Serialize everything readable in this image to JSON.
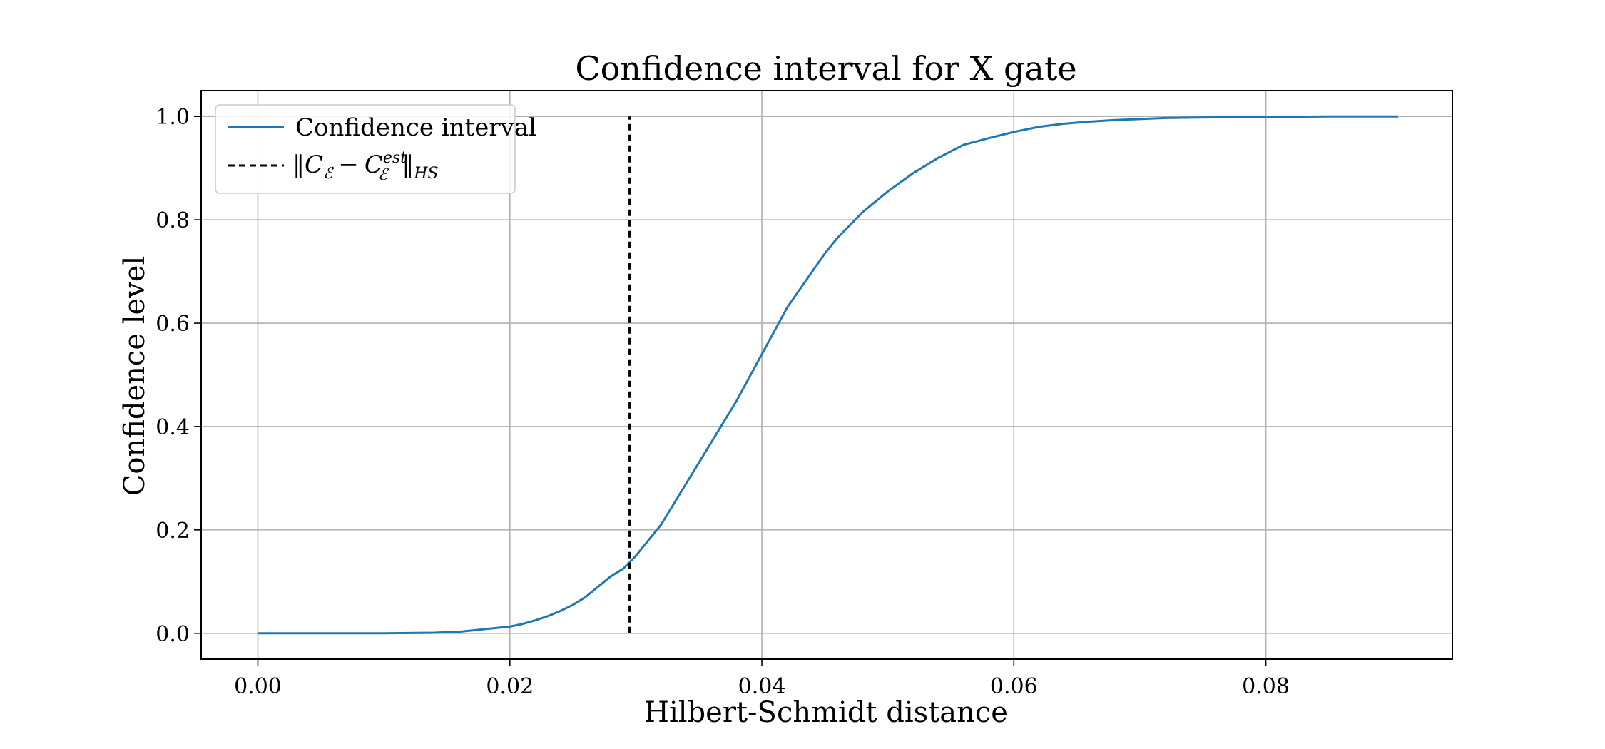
{
  "chart_data": {
    "type": "line",
    "title": "Confidence interval for X gate",
    "xlabel": "Hilbert-Schmidt distance",
    "ylabel": "Confidence level",
    "xlim": [
      -0.0045,
      0.0948
    ],
    "ylim": [
      -0.05,
      1.05
    ],
    "xticks": [
      0.0,
      0.02,
      0.04,
      0.06,
      0.08
    ],
    "xtick_labels": [
      "0.00",
      "0.02",
      "0.04",
      "0.06",
      "0.08"
    ],
    "yticks": [
      0.0,
      0.2,
      0.4,
      0.6,
      0.8,
      1.0
    ],
    "ytick_labels": [
      "0.0",
      "0.2",
      "0.4",
      "0.6",
      "0.8",
      "1.0"
    ],
    "grid": true,
    "legend": "top-left",
    "series": [
      {
        "name": "Confidence interval",
        "color": "#1f77b4",
        "style": "solid",
        "x": [
          0.0,
          0.01,
          0.014,
          0.016,
          0.018,
          0.02,
          0.021,
          0.022,
          0.023,
          0.024,
          0.025,
          0.026,
          0.027,
          0.028,
          0.029,
          0.03,
          0.031,
          0.032,
          0.033,
          0.034,
          0.035,
          0.036,
          0.037,
          0.038,
          0.039,
          0.04,
          0.041,
          0.042,
          0.043,
          0.044,
          0.045,
          0.046,
          0.047,
          0.048,
          0.049,
          0.05,
          0.052,
          0.054,
          0.056,
          0.058,
          0.06,
          0.062,
          0.064,
          0.066,
          0.068,
          0.07,
          0.072,
          0.075,
          0.08,
          0.085,
          0.0905
        ],
        "y": [
          0.0,
          0.0,
          0.001,
          0.003,
          0.008,
          0.013,
          0.018,
          0.025,
          0.033,
          0.043,
          0.055,
          0.07,
          0.09,
          0.11,
          0.125,
          0.15,
          0.18,
          0.21,
          0.25,
          0.29,
          0.33,
          0.37,
          0.41,
          0.45,
          0.495,
          0.54,
          0.585,
          0.63,
          0.665,
          0.7,
          0.735,
          0.765,
          0.79,
          0.815,
          0.835,
          0.855,
          0.89,
          0.92,
          0.945,
          0.958,
          0.97,
          0.98,
          0.986,
          0.99,
          0.993,
          0.995,
          0.997,
          0.998,
          0.999,
          1.0,
          1.0
        ]
      },
      {
        "name": "‖C_ℰ − C_ℰ^est‖_HS",
        "color": "#000000",
        "style": "dashed",
        "x": [
          0.0295,
          0.0295
        ],
        "y": [
          0.0,
          1.0
        ]
      }
    ]
  },
  "legend": {
    "entry_1": "Confidence interval",
    "entry_2_parts": {
      "norm": "‖",
      "c": "C",
      "sub": "ℰ",
      "minus": "−",
      "sup": "est",
      "hs": "HS"
    }
  }
}
